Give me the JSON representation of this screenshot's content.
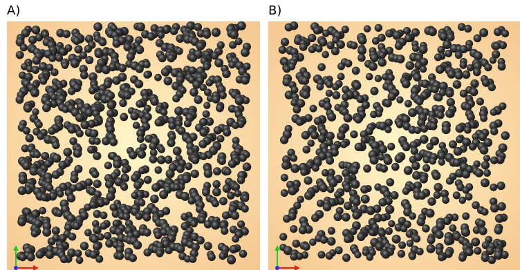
{
  "panels": [
    {
      "label": "A)",
      "id": "a",
      "seed": 17,
      "count": 950
    },
    {
      "label": "B)",
      "id": "b",
      "seed": 53,
      "count": 760
    }
  ],
  "colors": {
    "background_center": "#fff6c8",
    "background_edge": "#f5c38c",
    "sphere": "#3a3a3a",
    "sphere_highlight": "#8a8a8a",
    "sphere_shadow": "#151515",
    "axis_y": "#22cc22",
    "axis_x": "#dd2222",
    "axis_z": "#2233dd"
  },
  "icons": {
    "axis_triad": "xyz-axis-triad-icon"
  }
}
